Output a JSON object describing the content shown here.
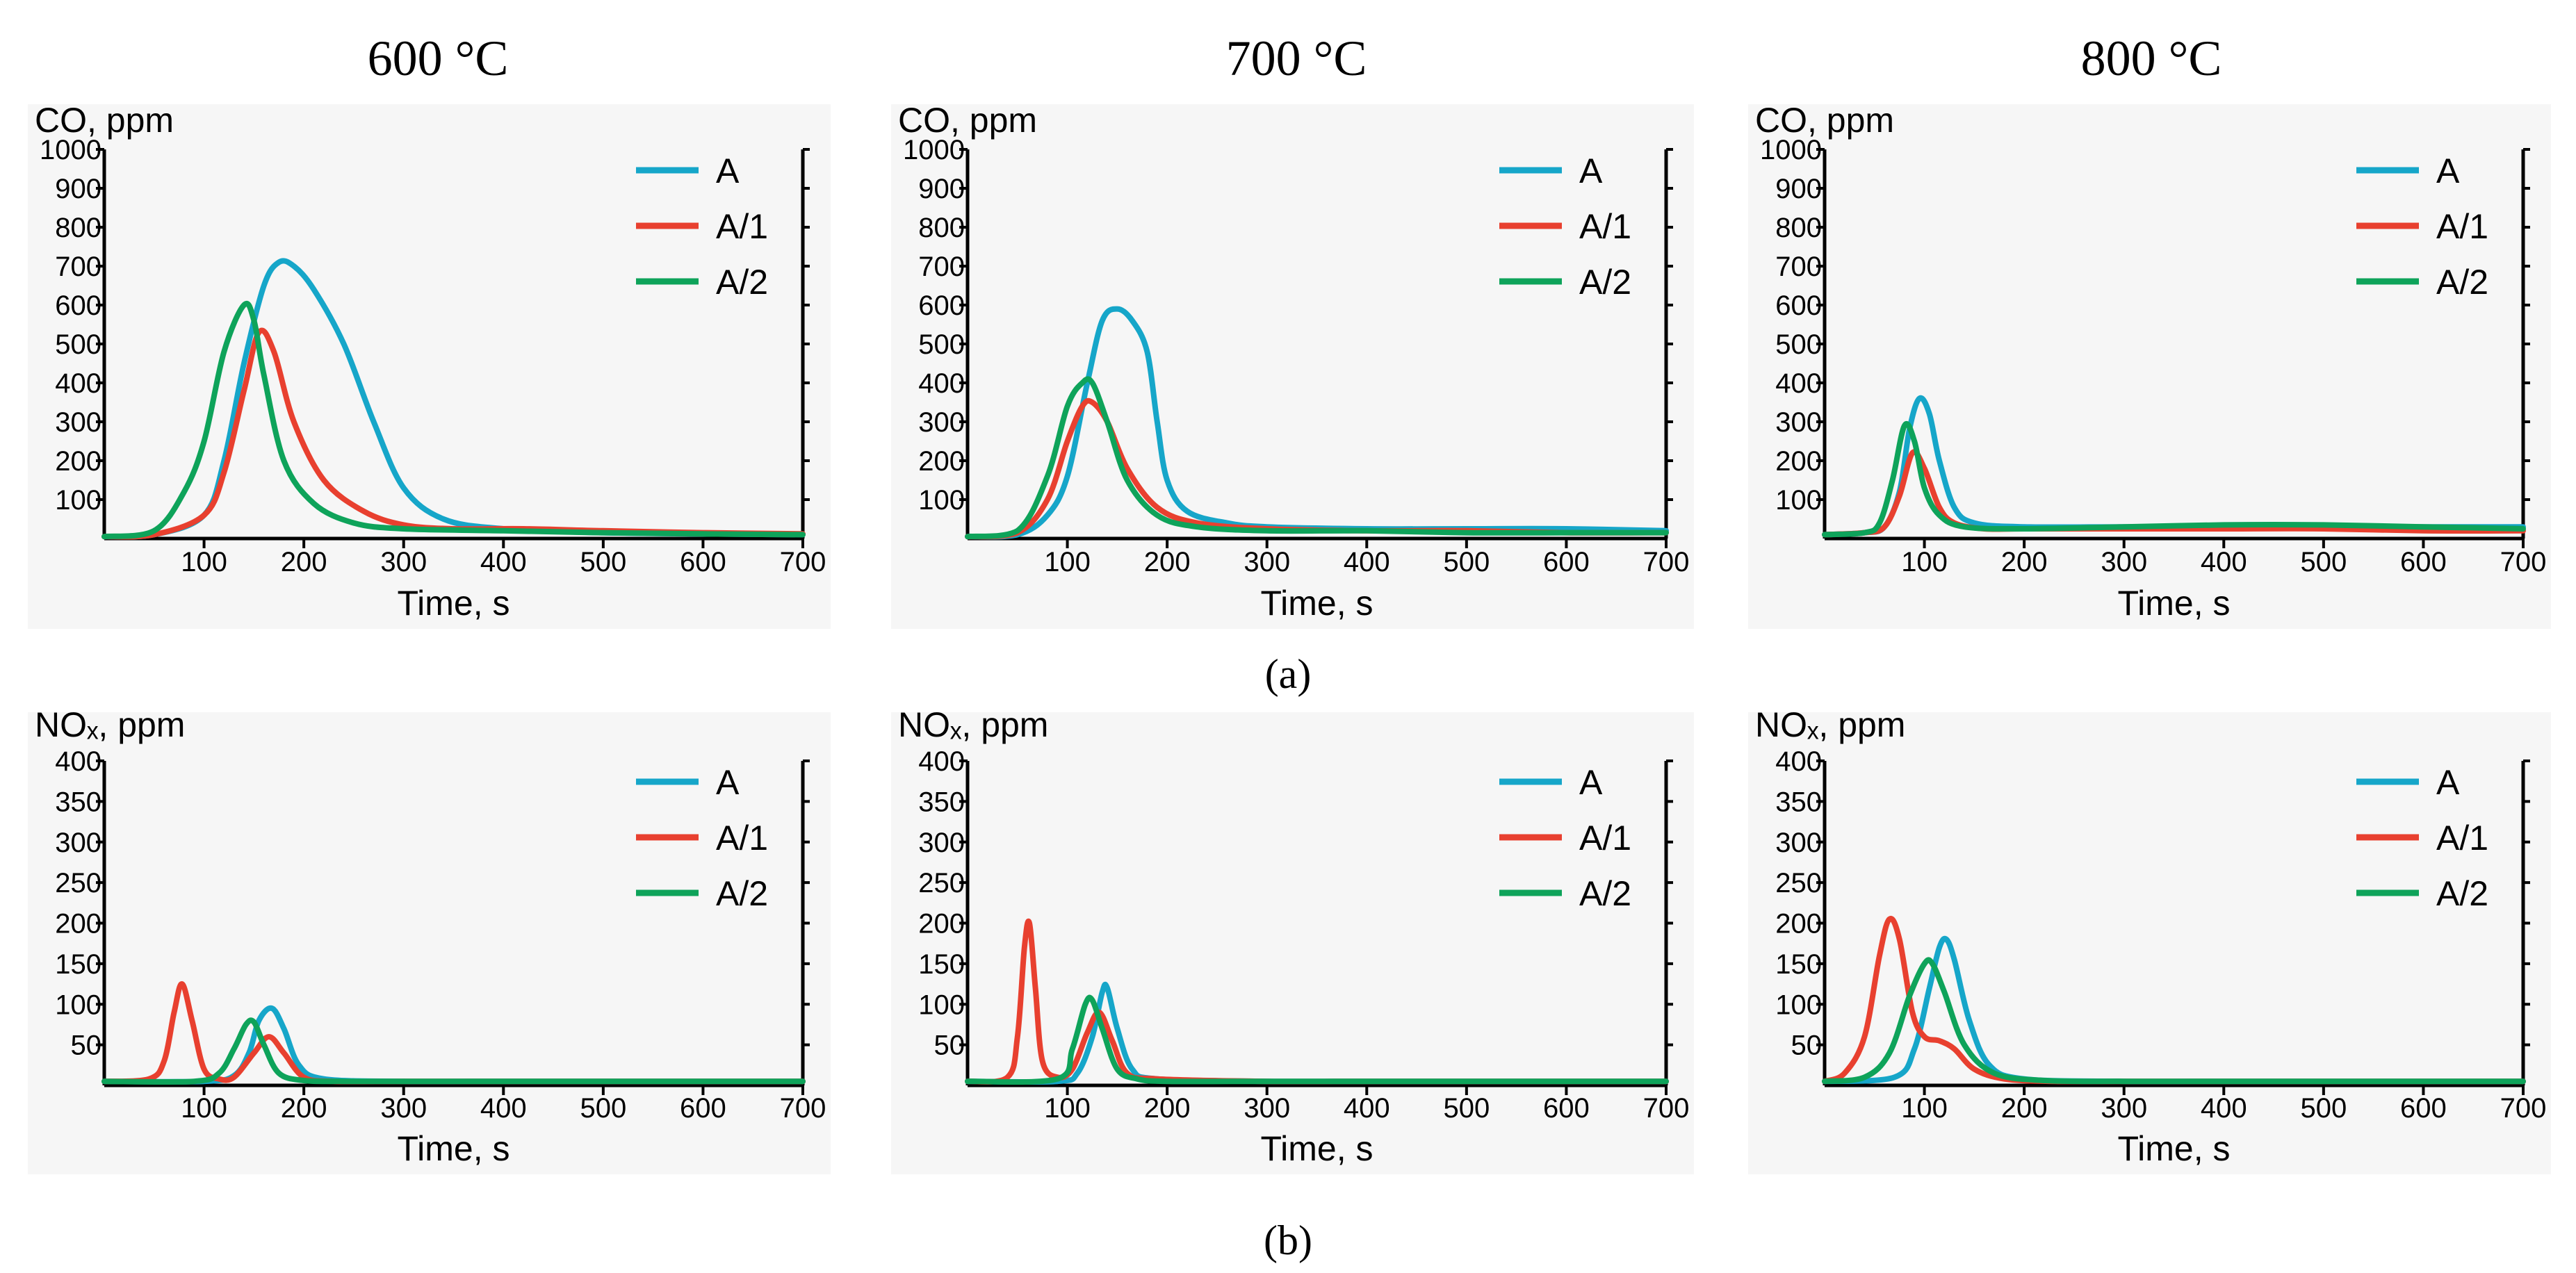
{
  "figure": {
    "caption_a": "(a)",
    "caption_b": "(b)",
    "temperatures": [
      "600 °C",
      "700 °C",
      "800 °C"
    ]
  },
  "colors": {
    "A": "#16a6c9",
    "A/1": "#e8402f",
    "A/2": "#0ea35a"
  },
  "chart_data": [
    {
      "type": "line",
      "row": "a",
      "column": "600 °C",
      "ylabel": "CO, ppm",
      "xlabel": "Time, s",
      "xlim": [
        0,
        700
      ],
      "ylim": [
        0,
        1000
      ],
      "xticks": [
        100,
        200,
        300,
        400,
        500,
        600,
        700
      ],
      "yticks": [
        100,
        200,
        300,
        400,
        500,
        600,
        700,
        800,
        900,
        1000
      ],
      "legend": "top-right",
      "series": [
        {
          "name": "A",
          "x": [
            0,
            50,
            100,
            120,
            140,
            160,
            175,
            190,
            210,
            240,
            270,
            300,
            340,
            400,
            500,
            600,
            700
          ],
          "y": [
            5,
            10,
            60,
            200,
            450,
            650,
            710,
            700,
            640,
            500,
            300,
            130,
            50,
            25,
            15,
            12,
            10
          ]
        },
        {
          "name": "A/1",
          "x": [
            0,
            50,
            100,
            120,
            140,
            155,
            170,
            190,
            220,
            260,
            300,
            350,
            420,
            500,
            600,
            700
          ],
          "y": [
            5,
            10,
            60,
            170,
            380,
            530,
            480,
            300,
            150,
            70,
            35,
            25,
            25,
            20,
            15,
            12
          ]
        },
        {
          "name": "A/2",
          "x": [
            0,
            50,
            80,
            100,
            120,
            140,
            150,
            160,
            180,
            210,
            250,
            300,
            400,
            500,
            600,
            700
          ],
          "y": [
            5,
            20,
            120,
            250,
            480,
            600,
            560,
            420,
            200,
            90,
            40,
            25,
            20,
            15,
            12,
            10
          ]
        }
      ]
    },
    {
      "type": "line",
      "row": "a",
      "column": "700 °C",
      "ylabel": "CO, ppm",
      "xlabel": "Time, s",
      "xlim": [
        0,
        700
      ],
      "ylim": [
        0,
        1000
      ],
      "xticks": [
        100,
        200,
        300,
        400,
        500,
        600,
        700
      ],
      "yticks": [
        100,
        200,
        300,
        400,
        500,
        600,
        700,
        800,
        900,
        1000
      ],
      "legend": "top-right",
      "series": [
        {
          "name": "A",
          "x": [
            0,
            50,
            80,
            100,
            120,
            135,
            150,
            165,
            180,
            190,
            200,
            220,
            260,
            300,
            400,
            500,
            600,
            700
          ],
          "y": [
            5,
            10,
            60,
            160,
            400,
            560,
            590,
            560,
            480,
            300,
            150,
            70,
            40,
            30,
            25,
            25,
            25,
            20
          ]
        },
        {
          "name": "A/1",
          "x": [
            0,
            50,
            80,
            100,
            115,
            125,
            140,
            160,
            190,
            230,
            300,
            400,
            500,
            600,
            700
          ],
          "y": [
            5,
            15,
            100,
            250,
            340,
            350,
            300,
            180,
            80,
            40,
            25,
            20,
            20,
            15,
            15
          ]
        },
        {
          "name": "A/2",
          "x": [
            0,
            50,
            80,
            100,
            115,
            125,
            140,
            160,
            190,
            230,
            300,
            400,
            500,
            600,
            700
          ],
          "y": [
            5,
            20,
            160,
            340,
            400,
            400,
            300,
            150,
            60,
            30,
            20,
            20,
            15,
            15,
            15
          ]
        }
      ]
    },
    {
      "type": "line",
      "row": "a",
      "column": "800 °C",
      "ylabel": "CO, ppm",
      "xlabel": "Time, s",
      "xlim": [
        0,
        700
      ],
      "ylim": [
        0,
        1000
      ],
      "xticks": [
        100,
        200,
        300,
        400,
        500,
        600,
        700
      ],
      "yticks": [
        100,
        200,
        300,
        400,
        500,
        600,
        700,
        800,
        900,
        1000
      ],
      "legend": "top-right",
      "series": [
        {
          "name": "A",
          "x": [
            0,
            40,
            60,
            75,
            85,
            95,
            105,
            115,
            130,
            150,
            200,
            300,
            400,
            500,
            600,
            700
          ],
          "y": [
            10,
            15,
            30,
            120,
            280,
            360,
            320,
            200,
            80,
            40,
            30,
            30,
            30,
            30,
            30,
            30
          ]
        },
        {
          "name": "A/1",
          "x": [
            0,
            40,
            60,
            75,
            88,
            100,
            115,
            130,
            160,
            200,
            300,
            400,
            500,
            600,
            700
          ],
          "y": [
            10,
            15,
            30,
            110,
            220,
            180,
            80,
            40,
            25,
            25,
            25,
            25,
            25,
            20,
            20
          ]
        },
        {
          "name": "A/2",
          "x": [
            0,
            40,
            55,
            68,
            80,
            90,
            100,
            115,
            140,
            200,
            300,
            400,
            500,
            600,
            700
          ],
          "y": [
            10,
            15,
            40,
            150,
            290,
            250,
            130,
            60,
            30,
            25,
            30,
            35,
            35,
            30,
            25
          ]
        }
      ]
    },
    {
      "type": "line",
      "row": "b",
      "column": "600 °C",
      "ylabel": "NOₓ, ppm",
      "xlabel": "Time, s",
      "xlim": [
        0,
        700
      ],
      "ylim": [
        0,
        400
      ],
      "xticks": [
        100,
        200,
        300,
        400,
        500,
        600,
        700
      ],
      "yticks": [
        50,
        100,
        150,
        200,
        250,
        300,
        350,
        400
      ],
      "legend": "top-right",
      "series": [
        {
          "name": "A",
          "x": [
            0,
            100,
            130,
            145,
            155,
            168,
            180,
            195,
            220,
            300,
            400,
            500,
            600,
            700
          ],
          "y": [
            5,
            5,
            12,
            40,
            80,
            95,
            70,
            25,
            8,
            5,
            5,
            5,
            5,
            5
          ]
        },
        {
          "name": "A/1",
          "x": [
            0,
            45,
            60,
            70,
            78,
            88,
            100,
            115,
            130,
            150,
            165,
            180,
            200,
            230,
            300,
            400,
            500,
            600,
            700
          ],
          "y": [
            5,
            8,
            30,
            90,
            125,
            80,
            20,
            8,
            10,
            40,
            60,
            40,
            10,
            5,
            5,
            5,
            5,
            5,
            5
          ]
        },
        {
          "name": "A/2",
          "x": [
            0,
            90,
            115,
            130,
            142,
            150,
            160,
            175,
            200,
            240,
            300,
            400,
            500,
            600,
            700
          ],
          "y": [
            5,
            5,
            15,
            45,
            75,
            78,
            50,
            15,
            6,
            5,
            5,
            5,
            5,
            5,
            5
          ]
        }
      ]
    },
    {
      "type": "line",
      "row": "b",
      "column": "700 °C",
      "ylabel": "NOₓ, ppm",
      "xlabel": "Time, s",
      "xlim": [
        0,
        700
      ],
      "ylim": [
        0,
        400
      ],
      "xticks": [
        100,
        200,
        300,
        400,
        500,
        600,
        700
      ],
      "yticks": [
        50,
        100,
        150,
        200,
        250,
        300,
        350,
        400
      ],
      "legend": "top-right",
      "series": [
        {
          "name": "A",
          "x": [
            0,
            90,
            110,
            125,
            135,
            140,
            150,
            165,
            190,
            300,
            400,
            500,
            600,
            700
          ],
          "y": [
            5,
            5,
            15,
            60,
            115,
            120,
            70,
            20,
            8,
            5,
            5,
            5,
            5,
            5
          ]
        },
        {
          "name": "A/1",
          "x": [
            0,
            40,
            50,
            57,
            62,
            68,
            75,
            90,
            105,
            120,
            132,
            145,
            160,
            190,
            300,
            400,
            500,
            600,
            700
          ],
          "y": [
            5,
            10,
            60,
            170,
            200,
            120,
            30,
            10,
            20,
            65,
            90,
            55,
            15,
            8,
            5,
            5,
            5,
            5,
            5
          ]
        },
        {
          "name": "A/2",
          "x": [
            0,
            90,
            105,
            118,
            125,
            135,
            150,
            170,
            200,
            300,
            400,
            500,
            600,
            700
          ],
          "y": [
            5,
            8,
            45,
            100,
            105,
            70,
            20,
            8,
            5,
            5,
            5,
            5,
            5,
            5
          ]
        }
      ]
    },
    {
      "type": "line",
      "row": "b",
      "column": "800 °C",
      "ylabel": "NOₓ, ppm",
      "xlabel": "Time, s",
      "xlim": [
        0,
        700
      ],
      "ylim": [
        0,
        400
      ],
      "xticks": [
        100,
        200,
        300,
        400,
        500,
        600,
        700
      ],
      "yticks": [
        50,
        100,
        150,
        200,
        250,
        300,
        350,
        400
      ],
      "legend": "top-right",
      "series": [
        {
          "name": "A",
          "x": [
            0,
            70,
            90,
            105,
            115,
            122,
            130,
            145,
            165,
            200,
            300,
            400,
            500,
            600,
            700
          ],
          "y": [
            5,
            10,
            45,
            120,
            170,
            180,
            155,
            80,
            25,
            8,
            5,
            5,
            5,
            5,
            5
          ]
        },
        {
          "name": "A/1",
          "x": [
            0,
            20,
            40,
            55,
            65,
            75,
            88,
            100,
            115,
            130,
            150,
            180,
            230,
            300,
            400,
            500,
            600,
            700
          ],
          "y": [
            5,
            15,
            60,
            160,
            205,
            180,
            90,
            60,
            55,
            45,
            20,
            8,
            5,
            5,
            5,
            5,
            5,
            5
          ]
        },
        {
          "name": "A/2",
          "x": [
            0,
            40,
            65,
            85,
            100,
            108,
            120,
            140,
            170,
            220,
            300,
            400,
            500,
            600,
            700
          ],
          "y": [
            5,
            10,
            40,
            110,
            150,
            150,
            115,
            50,
            15,
            6,
            5,
            5,
            5,
            5,
            5
          ]
        }
      ]
    }
  ]
}
